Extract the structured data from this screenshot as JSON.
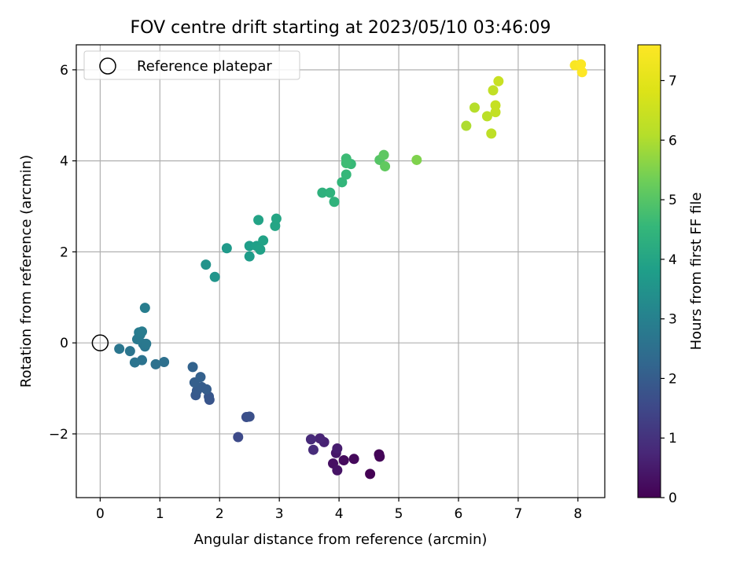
{
  "chart_data": {
    "type": "scatter",
    "title": "FOV centre drift starting at 2023/05/10 03:46:09",
    "xlabel": "Angular distance from reference (arcmin)",
    "ylabel": "Rotation from reference (arcmin)",
    "xlim": [
      -0.4,
      8.45
    ],
    "ylim": [
      -3.4,
      6.55
    ],
    "xticks": [
      0,
      1,
      2,
      3,
      4,
      5,
      6,
      7,
      8
    ],
    "xtick_labels": [
      "0",
      "1",
      "2",
      "3",
      "4",
      "5",
      "6",
      "7",
      "8"
    ],
    "yticks": [
      -2,
      0,
      2,
      4,
      6
    ],
    "ytick_labels": [
      "−2",
      "0",
      "2",
      "4",
      "6"
    ],
    "grid": true,
    "colorbar": {
      "label": "Hours from first FF file",
      "range": [
        0,
        7.6
      ],
      "ticks": [
        0,
        1,
        2,
        3,
        4,
        5,
        6,
        7
      ],
      "tick_labels": [
        "0",
        "1",
        "2",
        "3",
        "4",
        "5",
        "6",
        "7"
      ],
      "colormap": "viridis"
    },
    "legend": {
      "position": "upper-left",
      "entries": [
        {
          "label": "Reference platepar",
          "marker": "hollow-circle"
        }
      ]
    },
    "reference_point": {
      "x": 0,
      "y": 0
    },
    "points": [
      {
        "x": 4.52,
        "y": -2.88,
        "h": 0.0
      },
      {
        "x": 4.67,
        "y": -2.45,
        "h": 0.05
      },
      {
        "x": 4.68,
        "y": -2.5,
        "h": 0.08
      },
      {
        "x": 4.25,
        "y": -2.55,
        "h": 0.15
      },
      {
        "x": 4.08,
        "y": -2.58,
        "h": 0.2
      },
      {
        "x": 3.9,
        "y": -2.65,
        "h": 0.3
      },
      {
        "x": 3.97,
        "y": -2.8,
        "h": 0.35
      },
      {
        "x": 3.95,
        "y": -2.42,
        "h": 0.45
      },
      {
        "x": 3.97,
        "y": -2.32,
        "h": 0.55
      },
      {
        "x": 3.75,
        "y": -2.18,
        "h": 0.65
      },
      {
        "x": 3.68,
        "y": -2.1,
        "h": 0.7
      },
      {
        "x": 3.53,
        "y": -2.12,
        "h": 0.8
      },
      {
        "x": 3.57,
        "y": -2.35,
        "h": 0.85
      },
      {
        "x": 2.31,
        "y": -2.07,
        "h": 1.55
      },
      {
        "x": 2.45,
        "y": -1.63,
        "h": 1.65
      },
      {
        "x": 2.5,
        "y": -1.62,
        "h": 1.7
      },
      {
        "x": 1.83,
        "y": -1.25,
        "h": 1.8
      },
      {
        "x": 1.82,
        "y": -1.18,
        "h": 1.85
      },
      {
        "x": 1.6,
        "y": -1.15,
        "h": 1.9
      },
      {
        "x": 1.62,
        "y": -1.05,
        "h": 1.95
      },
      {
        "x": 1.7,
        "y": -0.97,
        "h": 2.0
      },
      {
        "x": 1.78,
        "y": -1.02,
        "h": 2.0
      },
      {
        "x": 1.58,
        "y": -0.87,
        "h": 2.05
      },
      {
        "x": 1.68,
        "y": -0.75,
        "h": 2.1
      },
      {
        "x": 1.55,
        "y": -0.53,
        "h": 2.15
      },
      {
        "x": 1.07,
        "y": -0.42,
        "h": 2.5
      },
      {
        "x": 0.93,
        "y": -0.47,
        "h": 2.55
      },
      {
        "x": 0.7,
        "y": -0.38,
        "h": 2.6
      },
      {
        "x": 0.58,
        "y": -0.43,
        "h": 2.62
      },
      {
        "x": 0.5,
        "y": -0.18,
        "h": 2.66
      },
      {
        "x": 0.32,
        "y": -0.13,
        "h": 2.68
      },
      {
        "x": 0.75,
        "y": -0.08,
        "h": 2.7
      },
      {
        "x": 0.72,
        "y": -0.02,
        "h": 2.73
      },
      {
        "x": 0.77,
        "y": -0.02,
        "h": 2.75
      },
      {
        "x": 0.62,
        "y": 0.08,
        "h": 2.78
      },
      {
        "x": 0.67,
        "y": 0.18,
        "h": 2.8
      },
      {
        "x": 0.65,
        "y": 0.23,
        "h": 2.83
      },
      {
        "x": 0.7,
        "y": 0.25,
        "h": 2.86
      },
      {
        "x": 0.75,
        "y": 0.77,
        "h": 2.9
      },
      {
        "x": 1.77,
        "y": 1.72,
        "h": 3.5
      },
      {
        "x": 1.92,
        "y": 1.45,
        "h": 3.55
      },
      {
        "x": 2.12,
        "y": 2.08,
        "h": 3.7
      },
      {
        "x": 2.5,
        "y": 1.9,
        "h": 3.75
      },
      {
        "x": 2.5,
        "y": 2.13,
        "h": 3.8
      },
      {
        "x": 2.62,
        "y": 2.13,
        "h": 3.85
      },
      {
        "x": 2.68,
        "y": 2.05,
        "h": 3.88
      },
      {
        "x": 2.73,
        "y": 2.25,
        "h": 3.92
      },
      {
        "x": 2.65,
        "y": 2.7,
        "h": 3.95
      },
      {
        "x": 2.93,
        "y": 2.57,
        "h": 4.0
      },
      {
        "x": 2.95,
        "y": 2.73,
        "h": 4.02
      },
      {
        "x": 3.72,
        "y": 3.3,
        "h": 4.35
      },
      {
        "x": 3.85,
        "y": 3.3,
        "h": 4.4
      },
      {
        "x": 3.92,
        "y": 3.1,
        "h": 4.42
      },
      {
        "x": 4.05,
        "y": 3.53,
        "h": 4.5
      },
      {
        "x": 4.12,
        "y": 3.7,
        "h": 4.55
      },
      {
        "x": 4.2,
        "y": 3.93,
        "h": 4.6
      },
      {
        "x": 4.12,
        "y": 4.05,
        "h": 4.65
      },
      {
        "x": 4.12,
        "y": 3.95,
        "h": 4.68
      },
      {
        "x": 4.68,
        "y": 4.02,
        "h": 5.0
      },
      {
        "x": 4.75,
        "y": 4.13,
        "h": 5.1
      },
      {
        "x": 4.77,
        "y": 3.88,
        "h": 5.15
      },
      {
        "x": 5.3,
        "y": 4.02,
        "h": 5.5
      },
      {
        "x": 6.13,
        "y": 4.77,
        "h": 6.0
      },
      {
        "x": 6.27,
        "y": 5.17,
        "h": 6.1
      },
      {
        "x": 6.48,
        "y": 4.98,
        "h": 6.2
      },
      {
        "x": 6.55,
        "y": 4.6,
        "h": 6.25
      },
      {
        "x": 6.58,
        "y": 5.55,
        "h": 6.3
      },
      {
        "x": 6.62,
        "y": 5.07,
        "h": 6.35
      },
      {
        "x": 6.62,
        "y": 5.22,
        "h": 6.4
      },
      {
        "x": 6.67,
        "y": 5.75,
        "h": 6.45
      },
      {
        "x": 7.95,
        "y": 6.1,
        "h": 7.5
      },
      {
        "x": 8.05,
        "y": 6.12,
        "h": 7.55
      },
      {
        "x": 8.07,
        "y": 5.95,
        "h": 7.6
      }
    ]
  }
}
